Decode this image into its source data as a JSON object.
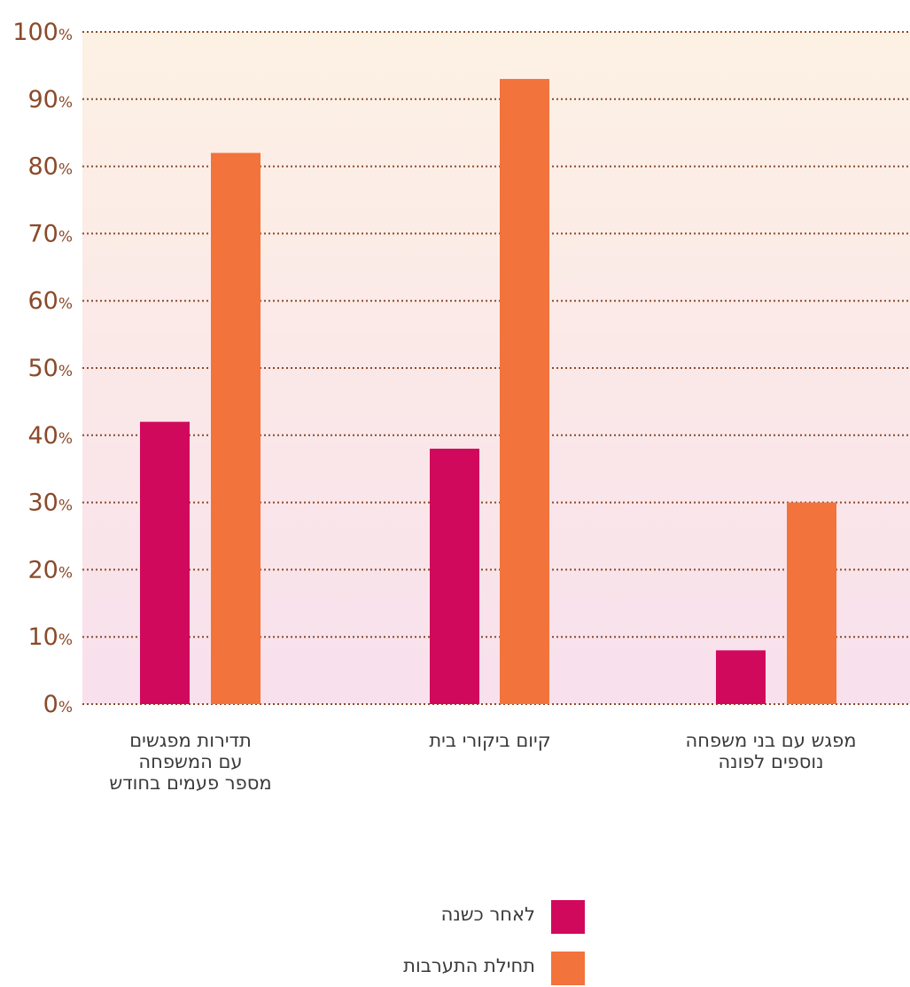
{
  "chart_data": {
    "type": "bar",
    "categories": [
      "תדירות מפגשים\nעם המשפחה\nמספר פעמים בחודש",
      "קיום ביקורי בית",
      "מפגש עם בני משפחה\nנוספים לפונה"
    ],
    "series": [
      {
        "name": "לאחר כשנה",
        "values": [
          42,
          38,
          8
        ],
        "color": "#d1095c"
      },
      {
        "name": "תחילת התערבות",
        "values": [
          82,
          93,
          30
        ],
        "color": "#f2733c"
      }
    ],
    "ylim": [
      0,
      100
    ],
    "yticks": [
      {
        "num": "0",
        "unit": "%"
      },
      {
        "num": "10",
        "unit": "%"
      },
      {
        "num": "20",
        "unit": "%"
      },
      {
        "num": "30",
        "unit": "%"
      },
      {
        "num": "40",
        "unit": "%"
      },
      {
        "num": "50",
        "unit": "%"
      },
      {
        "num": "60",
        "unit": "%"
      },
      {
        "num": "70",
        "unit": "%"
      },
      {
        "num": "80",
        "unit": "%"
      },
      {
        "num": "90",
        "unit": "%"
      },
      {
        "num": "100",
        "unit": "%"
      }
    ],
    "grid": true,
    "legend_position": "bottom-center",
    "background_gradient": [
      "#fdf1e4",
      "#f8e0ec"
    ],
    "axis_text_color": "#8a4a2a",
    "grid_color": "#8a4a2a"
  }
}
